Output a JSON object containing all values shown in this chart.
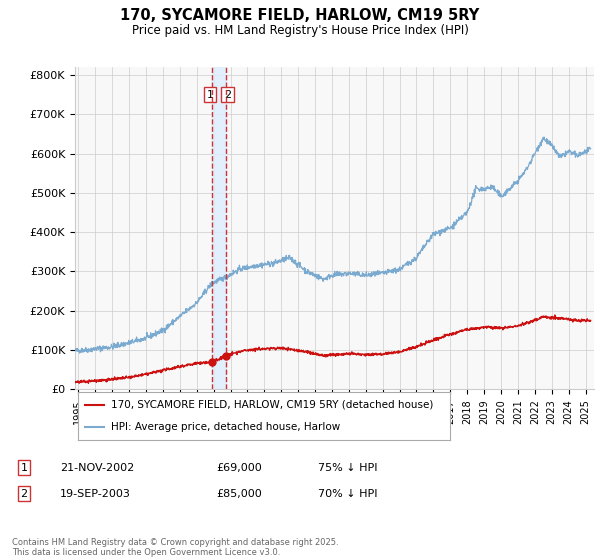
{
  "title": "170, SYCAMORE FIELD, HARLOW, CM19 5RY",
  "subtitle": "Price paid vs. HM Land Registry's House Price Index (HPI)",
  "ylabel_ticks": [
    "£0",
    "£100K",
    "£200K",
    "£300K",
    "£400K",
    "£500K",
    "£600K",
    "£700K",
    "£800K"
  ],
  "ytick_values": [
    0,
    100000,
    200000,
    300000,
    400000,
    500000,
    600000,
    700000,
    800000
  ],
  "ylim": [
    0,
    820000
  ],
  "xlim_start": 1994.8,
  "xlim_end": 2025.5,
  "hpi_color": "#7aaad0",
  "price_color": "#cc1111",
  "vline_color": "#cc3333",
  "shade_color": "#ddeeff",
  "legend_entries": [
    "170, SYCAMORE FIELD, HARLOW, CM19 5RY (detached house)",
    "HPI: Average price, detached house, Harlow"
  ],
  "t1_x": 2002.9,
  "t2_x": 2003.72,
  "t1_price": 69000,
  "t2_price": 85000,
  "transaction1": {
    "label": "1",
    "date": "21-NOV-2002",
    "price": "£69,000",
    "hpi_note": "75% ↓ HPI"
  },
  "transaction2": {
    "label": "2",
    "date": "19-SEP-2003",
    "price": "£85,000",
    "hpi_note": "70% ↓ HPI"
  },
  "footnote": "Contains HM Land Registry data © Crown copyright and database right 2025.\nThis data is licensed under the Open Government Licence v3.0.",
  "background_color": "#ffffff",
  "plot_bg_color": "#f8f8f8"
}
